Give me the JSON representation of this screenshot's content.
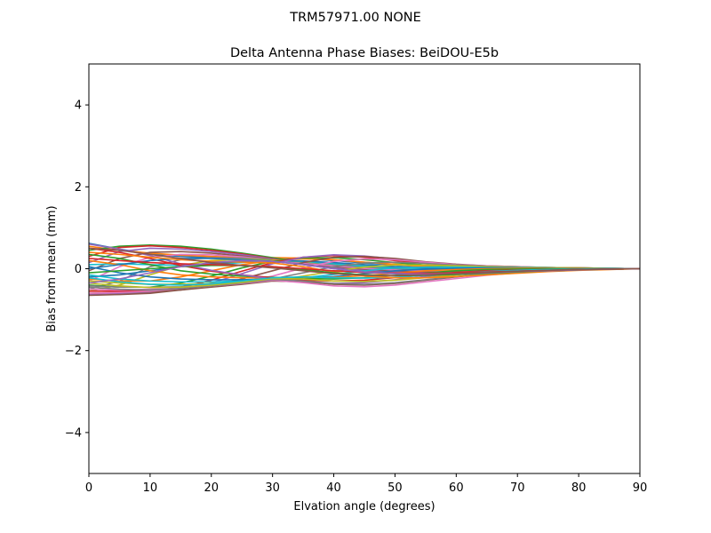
{
  "chart_data": {
    "type": "line",
    "suptitle": "TRM57971.00      NONE",
    "title": "Delta Antenna Phase Biases: BeiDOU-E5b",
    "xlabel": "Elvation angle (degrees)",
    "ylabel": "Bias from mean (mm)",
    "xlim": [
      0,
      90
    ],
    "ylim": [
      -5,
      5
    ],
    "xticks": [
      0,
      10,
      20,
      30,
      40,
      50,
      60,
      70,
      80,
      90
    ],
    "yticks": [
      -4,
      -2,
      0,
      2,
      4
    ],
    "ytick_labels": [
      "−4",
      "−2",
      "0",
      "2",
      "4"
    ],
    "grid": false,
    "x": [
      0,
      5,
      10,
      15,
      20,
      25,
      30,
      35,
      40,
      45,
      50,
      55,
      60,
      65,
      70,
      75,
      80,
      85,
      90
    ],
    "series_colors": [
      "#1f77b4",
      "#ff7f0e",
      "#2ca02c",
      "#d62728",
      "#9467bd",
      "#8c564b",
      "#e377c2",
      "#7f7f7f",
      "#bcbd22",
      "#17becf"
    ],
    "series": [
      {
        "values": [
          0.62,
          0.48,
          0.36,
          0.3,
          0.27,
          0.26,
          0.26,
          0.25,
          0.2,
          0.14,
          0.09,
          0.05,
          0.02,
          0.01,
          0.0,
          0.0,
          0.0,
          0.0,
          0.0
        ]
      },
      {
        "values": [
          0.55,
          0.45,
          0.38,
          0.33,
          0.3,
          0.28,
          0.27,
          0.26,
          0.22,
          0.16,
          0.11,
          0.07,
          0.04,
          0.02,
          0.01,
          0.0,
          0.0,
          0.0,
          0.0
        ]
      },
      {
        "values": [
          0.45,
          0.55,
          0.58,
          0.55,
          0.48,
          0.38,
          0.27,
          0.15,
          0.05,
          -0.02,
          -0.05,
          -0.06,
          -0.06,
          -0.05,
          -0.04,
          -0.03,
          -0.02,
          -0.01,
          0.0
        ]
      },
      {
        "values": [
          0.3,
          0.52,
          0.56,
          0.52,
          0.45,
          0.36,
          0.25,
          0.12,
          0.02,
          -0.05,
          -0.08,
          -0.09,
          -0.08,
          -0.07,
          -0.05,
          -0.04,
          -0.02,
          -0.01,
          0.0
        ]
      },
      {
        "values": [
          0.15,
          0.42,
          0.5,
          0.48,
          0.42,
          0.34,
          0.24,
          0.12,
          0.03,
          -0.04,
          -0.07,
          -0.08,
          -0.08,
          -0.07,
          -0.05,
          -0.04,
          -0.02,
          -0.01,
          0.0
        ]
      },
      {
        "values": [
          -0.05,
          0.25,
          0.4,
          0.42,
          0.38,
          0.31,
          0.23,
          0.13,
          0.05,
          -0.01,
          -0.05,
          -0.06,
          -0.06,
          -0.05,
          -0.04,
          -0.03,
          -0.02,
          -0.01,
          0.0
        ]
      },
      {
        "values": [
          -0.3,
          0.05,
          0.28,
          0.35,
          0.34,
          0.29,
          0.22,
          0.14,
          0.07,
          0.01,
          -0.03,
          -0.05,
          -0.05,
          -0.05,
          -0.04,
          -0.03,
          -0.02,
          -0.01,
          0.0
        ]
      },
      {
        "values": [
          -0.5,
          -0.3,
          0.05,
          0.22,
          0.27,
          0.26,
          0.22,
          0.16,
          0.1,
          0.04,
          0.0,
          -0.02,
          -0.03,
          -0.03,
          -0.03,
          -0.02,
          -0.01,
          -0.01,
          0.0
        ]
      },
      {
        "values": [
          -0.55,
          -0.4,
          -0.15,
          0.08,
          0.2,
          0.23,
          0.21,
          0.17,
          0.12,
          0.07,
          0.03,
          0.01,
          -0.01,
          -0.01,
          -0.01,
          -0.01,
          -0.01,
          0.0,
          0.0
        ]
      },
      {
        "values": [
          0.1,
          0.12,
          0.1,
          0.08,
          0.1,
          0.15,
          0.2,
          0.18,
          0.12,
          0.06,
          0.02,
          0.0,
          -0.01,
          -0.01,
          -0.01,
          -0.01,
          0.0,
          0.0,
          0.0
        ]
      },
      {
        "values": [
          -0.2,
          -0.15,
          -0.05,
          0.05,
          0.12,
          0.18,
          0.2,
          0.19,
          0.15,
          0.1,
          0.05,
          0.02,
          0.0,
          -0.01,
          -0.01,
          -0.01,
          0.0,
          0.0,
          0.0
        ]
      },
      {
        "values": [
          -0.25,
          -0.3,
          -0.3,
          -0.2,
          -0.05,
          0.1,
          0.2,
          0.24,
          0.22,
          0.16,
          0.1,
          0.05,
          0.02,
          0.01,
          0.0,
          0.0,
          0.0,
          0.0,
          0.0
        ]
      },
      {
        "values": [
          -0.4,
          -0.45,
          -0.45,
          -0.35,
          -0.18,
          0.02,
          0.18,
          0.26,
          0.27,
          0.22,
          0.15,
          0.09,
          0.05,
          0.03,
          0.02,
          0.01,
          0.01,
          0.0,
          0.0
        ]
      },
      {
        "values": [
          -0.55,
          -0.55,
          -0.55,
          -0.45,
          -0.28,
          -0.06,
          0.15,
          0.28,
          0.32,
          0.28,
          0.2,
          0.13,
          0.08,
          0.05,
          0.03,
          0.02,
          0.01,
          0.0,
          0.0
        ]
      },
      {
        "values": [
          -0.62,
          -0.6,
          -0.58,
          -0.5,
          -0.35,
          -0.12,
          0.12,
          0.28,
          0.34,
          0.31,
          0.24,
          0.16,
          0.1,
          0.06,
          0.04,
          0.03,
          0.02,
          0.01,
          0.0
        ]
      },
      {
        "values": [
          -0.6,
          -0.58,
          -0.56,
          -0.52,
          -0.42,
          -0.25,
          -0.05,
          0.15,
          0.28,
          0.3,
          0.25,
          0.17,
          0.11,
          0.07,
          0.05,
          0.03,
          0.02,
          0.01,
          0.0
        ]
      },
      {
        "values": [
          -0.5,
          -0.52,
          -0.5,
          -0.48,
          -0.42,
          -0.32,
          -0.18,
          0.02,
          0.18,
          0.24,
          0.22,
          0.16,
          0.1,
          0.07,
          0.05,
          0.03,
          0.02,
          0.01,
          0.0
        ]
      },
      {
        "values": [
          -0.42,
          -0.45,
          -0.45,
          -0.44,
          -0.4,
          -0.34,
          -0.25,
          -0.1,
          0.05,
          0.14,
          0.16,
          0.13,
          0.09,
          0.06,
          0.04,
          0.03,
          0.02,
          0.01,
          0.0
        ]
      },
      {
        "values": [
          -0.3,
          -0.35,
          -0.38,
          -0.38,
          -0.36,
          -0.33,
          -0.28,
          -0.18,
          -0.06,
          0.04,
          0.09,
          0.09,
          0.07,
          0.05,
          0.04,
          0.03,
          0.02,
          0.01,
          0.0
        ]
      },
      {
        "values": [
          -0.15,
          -0.25,
          -0.3,
          -0.32,
          -0.32,
          -0.3,
          -0.27,
          -0.22,
          -0.14,
          -0.05,
          0.02,
          0.04,
          0.04,
          0.03,
          0.03,
          0.02,
          0.01,
          0.01,
          0.0
        ]
      },
      {
        "values": [
          0.05,
          -0.1,
          -0.2,
          -0.25,
          -0.27,
          -0.27,
          -0.25,
          -0.23,
          -0.19,
          -0.12,
          -0.05,
          -0.01,
          0.01,
          0.02,
          0.02,
          0.01,
          0.01,
          0.0,
          0.0
        ]
      },
      {
        "values": [
          0.2,
          0.1,
          -0.05,
          -0.15,
          -0.2,
          -0.22,
          -0.22,
          -0.22,
          -0.21,
          -0.17,
          -0.11,
          -0.05,
          -0.02,
          0.0,
          0.01,
          0.01,
          0.01,
          0.0,
          0.0
        ]
      },
      {
        "values": [
          0.35,
          0.25,
          0.1,
          -0.05,
          -0.13,
          -0.18,
          -0.21,
          -0.24,
          -0.25,
          -0.22,
          -0.16,
          -0.1,
          -0.05,
          -0.02,
          -0.01,
          0.0,
          0.0,
          0.0,
          0.0
        ]
      },
      {
        "values": [
          0.5,
          0.4,
          0.25,
          0.08,
          -0.06,
          -0.15,
          -0.22,
          -0.28,
          -0.3,
          -0.28,
          -0.22,
          -0.15,
          -0.09,
          -0.05,
          -0.03,
          -0.02,
          -0.01,
          0.0,
          0.0
        ]
      },
      {
        "values": [
          0.6,
          0.48,
          0.32,
          0.12,
          -0.04,
          -0.15,
          -0.25,
          -0.33,
          -0.36,
          -0.34,
          -0.27,
          -0.19,
          -0.12,
          -0.08,
          -0.05,
          -0.03,
          -0.02,
          -0.01,
          0.0
        ]
      },
      {
        "values": [
          -0.65,
          -0.63,
          -0.6,
          -0.52,
          -0.45,
          -0.38,
          -0.3,
          -0.32,
          -0.38,
          -0.4,
          -0.36,
          -0.28,
          -0.2,
          -0.13,
          -0.08,
          -0.05,
          -0.03,
          -0.01,
          0.0
        ]
      },
      {
        "values": [
          -0.6,
          -0.58,
          -0.55,
          -0.48,
          -0.42,
          -0.36,
          -0.28,
          -0.34,
          -0.42,
          -0.44,
          -0.4,
          -0.32,
          -0.24,
          -0.16,
          -0.1,
          -0.06,
          -0.03,
          -0.01,
          0.0
        ]
      },
      {
        "values": [
          -0.45,
          -0.5,
          -0.52,
          -0.48,
          -0.42,
          -0.35,
          -0.26,
          -0.3,
          -0.36,
          -0.38,
          -0.34,
          -0.27,
          -0.19,
          -0.12,
          -0.07,
          -0.04,
          -0.02,
          -0.01,
          0.0
        ]
      },
      {
        "values": [
          -0.35,
          -0.42,
          -0.46,
          -0.45,
          -0.4,
          -0.33,
          -0.24,
          -0.25,
          -0.3,
          -0.31,
          -0.28,
          -0.22,
          -0.15,
          -0.09,
          -0.05,
          -0.03,
          -0.02,
          -0.01,
          0.0
        ]
      },
      {
        "values": [
          -0.22,
          -0.32,
          -0.38,
          -0.4,
          -0.37,
          -0.3,
          -0.22,
          -0.2,
          -0.22,
          -0.23,
          -0.21,
          -0.16,
          -0.11,
          -0.07,
          -0.04,
          -0.02,
          -0.01,
          0.0,
          0.0
        ]
      },
      {
        "values": [
          0.0,
          0.1,
          0.2,
          0.25,
          0.25,
          0.22,
          0.18,
          0.1,
          0.0,
          -0.08,
          -0.12,
          -0.13,
          -0.12,
          -0.1,
          -0.07,
          -0.05,
          -0.03,
          -0.01,
          0.0
        ]
      },
      {
        "values": [
          0.4,
          0.35,
          0.28,
          0.22,
          0.18,
          0.16,
          0.14,
          0.05,
          -0.08,
          -0.18,
          -0.22,
          -0.22,
          -0.19,
          -0.15,
          -0.11,
          -0.07,
          -0.04,
          -0.02,
          0.0
        ]
      },
      {
        "values": [
          -0.1,
          -0.05,
          0.0,
          0.05,
          0.08,
          0.08,
          0.05,
          -0.02,
          -0.1,
          -0.15,
          -0.17,
          -0.16,
          -0.14,
          -0.11,
          -0.08,
          -0.05,
          -0.03,
          -0.01,
          0.0
        ]
      },
      {
        "values": [
          0.25,
          0.2,
          0.15,
          0.12,
          0.1,
          0.08,
          0.05,
          0.0,
          -0.05,
          -0.09,
          -0.11,
          -0.11,
          -0.1,
          -0.08,
          -0.06,
          -0.04,
          -0.02,
          -0.01,
          0.0
        ]
      },
      {
        "values": [
          -0.35,
          -0.25,
          -0.1,
          0.05,
          0.15,
          0.2,
          0.18,
          0.1,
          0.0,
          -0.08,
          -0.12,
          -0.13,
          -0.12,
          -0.1,
          -0.07,
          -0.05,
          -0.03,
          -0.01,
          0.0
        ]
      },
      {
        "values": [
          0.5,
          0.45,
          0.35,
          0.25,
          0.15,
          0.08,
          0.02,
          -0.05,
          -0.12,
          -0.16,
          -0.17,
          -0.15,
          -0.12,
          -0.09,
          -0.06,
          -0.04,
          -0.02,
          -0.01,
          0.0
        ]
      }
    ]
  }
}
